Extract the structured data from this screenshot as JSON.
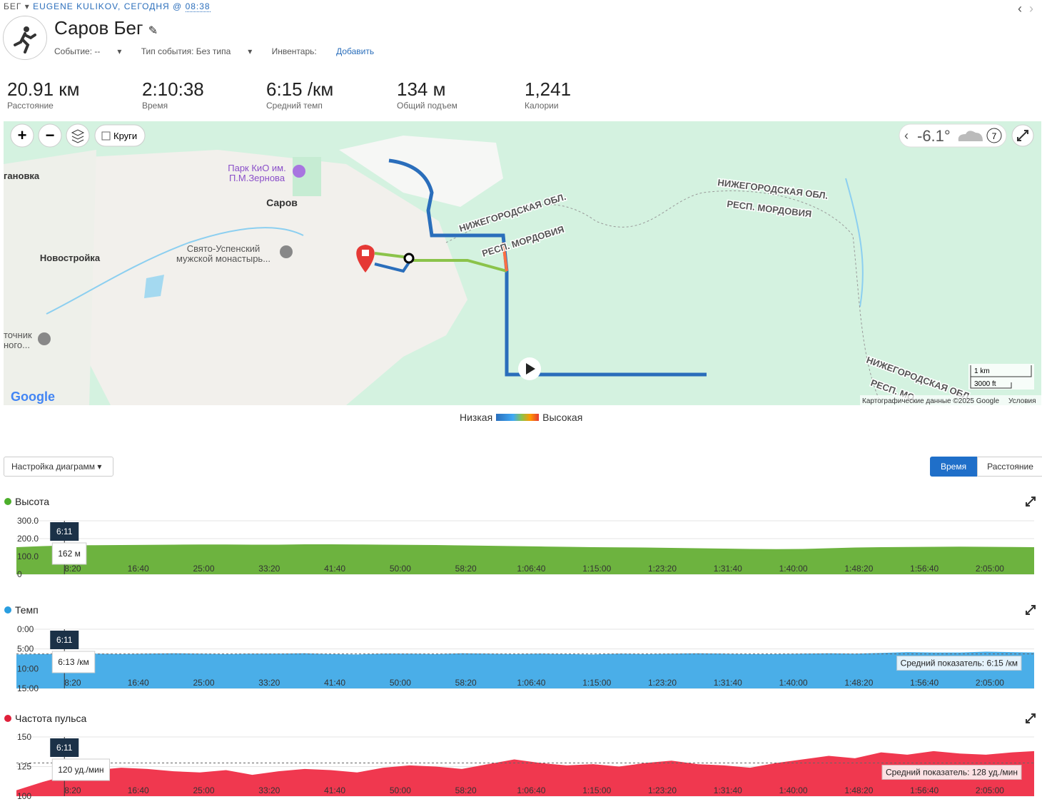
{
  "header": {
    "sport": "БЕГ",
    "owner": "EUGENE KULIKOV, СЕГОДНЯ @",
    "time": "08:38",
    "title": "Саров Бег",
    "fields": [
      {
        "label": "Событие: --"
      },
      {
        "label": "Тип события: Без типа"
      },
      {
        "label": "Инвентарь:",
        "link": "Добавить"
      }
    ]
  },
  "stats": [
    {
      "value": "20.91 км",
      "label": "Расстояние"
    },
    {
      "value": "2:10:38",
      "label": "Время"
    },
    {
      "value": "6:15 /км",
      "label": "Средний темп"
    },
    {
      "value": "134 м",
      "label": "Общий подъем"
    },
    {
      "value": "1,241",
      "label": "Калории"
    }
  ],
  "map": {
    "laps": "Круги",
    "weather": "-6.1°",
    "wind": "7",
    "places": [
      "гановка",
      "Парк КиО им.",
      "П.М.Зернова",
      "Саров",
      "Новостройка",
      "Свято-Успенский",
      "мужской монастырь...",
      "точник",
      "ного..."
    ],
    "borders": [
      "НИЖЕГОРОДСКАЯ ОБЛ.",
      "РЕСП. МОРДОВИЯ",
      "НИЖЕГОРОДСКАЯ ОБЛ.",
      "РЕСП. МОРДОВИЯ",
      "НИЖЕГОРОДСКАЯ ОБЛ.",
      "РЕСП. МО"
    ],
    "scale": [
      "1 km",
      "3000 ft"
    ],
    "logo": "Google",
    "attribution": "Картографические данные ©2025 Google",
    "terms": "Условия",
    "legend_low": "Низкая",
    "legend_high": "Высокая"
  },
  "controls": {
    "settings": "Настройка диаграмм",
    "time": "Время",
    "distance": "Расстояние"
  },
  "charts": [
    {
      "type": "area",
      "title": "Высота",
      "color": "#6db33f",
      "dot": "#4caf2b",
      "inverted": false,
      "x": [
        70,
        270,
        470,
        670,
        870,
        1070,
        1270,
        1470,
        1670,
        1870,
        2070,
        2270,
        2470,
        2670,
        2870,
        3070,
        3270,
        3470,
        3670,
        3870,
        4070,
        4270,
        4470,
        4670,
        4870,
        5070,
        5270,
        5470,
        5670,
        5870,
        6070,
        6270,
        6470,
        6670,
        6870,
        7070,
        7270,
        7470,
        7670,
        7838
      ],
      "values": [
        152,
        158,
        162,
        163,
        164,
        165,
        166,
        167,
        167,
        166,
        166,
        168,
        168,
        167,
        166,
        165,
        164,
        162,
        160,
        158,
        156,
        154,
        152,
        151,
        150,
        148,
        146,
        144,
        142,
        141,
        142,
        146,
        150,
        152,
        153,
        154,
        155,
        154,
        153,
        152
      ],
      "xlim": [
        70,
        7838
      ],
      "xticks": [
        {
          "value": 500,
          "label": "8:20"
        },
        {
          "value": 1000,
          "label": "16:40"
        },
        {
          "value": 1500,
          "label": "25:00"
        },
        {
          "value": 2000,
          "label": "33:20"
        },
        {
          "value": 2500,
          "label": "41:40"
        },
        {
          "value": 3000,
          "label": "50:00"
        },
        {
          "value": 3500,
          "label": "58:20"
        },
        {
          "value": 4000,
          "label": "1:06:40"
        },
        {
          "value": 4500,
          "label": "1:15:00"
        },
        {
          "value": 5000,
          "label": "1:23:20"
        },
        {
          "value": 5500,
          "label": "1:31:40"
        },
        {
          "value": 6000,
          "label": "1:40:00"
        },
        {
          "value": 6500,
          "label": "1:48:20"
        },
        {
          "value": 7000,
          "label": "1:56:40"
        },
        {
          "value": 7500,
          "label": "2:05:00"
        }
      ],
      "ylim": [
        0,
        300
      ],
      "yticks": [
        0,
        {
          "value": 100,
          "label": "100.0"
        },
        {
          "value": 200,
          "label": "200.0"
        },
        {
          "value": 300,
          "label": "300.0"
        }
      ],
      "cursor": {
        "x": 371,
        "label": "6:11",
        "value_label": "162 м"
      }
    },
    {
      "type": "area",
      "title": "Темп",
      "color": "#4aaee8",
      "dot": "#2a9ee0",
      "inverted": true,
      "x": [
        70,
        270,
        470,
        670,
        870,
        1070,
        1270,
        1470,
        1670,
        1870,
        2070,
        2270,
        2470,
        2670,
        2870,
        3070,
        3270,
        3470,
        3670,
        3870,
        4070,
        4270,
        4470,
        4670,
        4870,
        5070,
        5270,
        5470,
        5670,
        5870,
        6070,
        6270,
        6470,
        6670,
        6870,
        7070,
        7270,
        7470,
        7670,
        7838
      ],
      "values": [
        6.4,
        6.3,
        6.2,
        6.2,
        6.3,
        6.2,
        6.1,
        6.2,
        6.3,
        6.2,
        6.2,
        6.1,
        6.3,
        6.4,
        6.2,
        6.2,
        6.3,
        6.1,
        6.2,
        6.3,
        6.2,
        6.3,
        6.4,
        6.2,
        6.3,
        6.2,
        6.1,
        6.2,
        6.3,
        6.3,
        6.2,
        6.1,
        6.2,
        6.0,
        5.8,
        5.9,
        5.9,
        5.7,
        5.8,
        5.9
      ],
      "xlim": [
        70,
        7838
      ],
      "xticks": [
        {
          "value": 500,
          "label": "8:20"
        },
        {
          "value": 1000,
          "label": "16:40"
        },
        {
          "value": 1500,
          "label": "25:00"
        },
        {
          "value": 2000,
          "label": "33:20"
        },
        {
          "value": 2500,
          "label": "41:40"
        },
        {
          "value": 3000,
          "label": "50:00"
        },
        {
          "value": 3500,
          "label": "58:20"
        },
        {
          "value": 4000,
          "label": "1:06:40"
        },
        {
          "value": 4500,
          "label": "1:15:00"
        },
        {
          "value": 5000,
          "label": "1:23:20"
        },
        {
          "value": 5500,
          "label": "1:31:40"
        },
        {
          "value": 6000,
          "label": "1:40:00"
        },
        {
          "value": 6500,
          "label": "1:48:20"
        },
        {
          "value": 7000,
          "label": "1:56:40"
        },
        {
          "value": 7500,
          "label": "2:05:00"
        }
      ],
      "ylim": [
        0,
        15
      ],
      "yticks": [
        {
          "value": 0,
          "label": "0:00"
        },
        {
          "value": 5,
          "label": "5:00"
        },
        {
          "value": 10,
          "label": "10:00"
        },
        {
          "value": 15,
          "label": "15:00"
        }
      ],
      "average": 6.25,
      "average_label": "Средний показатель: 6:15 /км",
      "cursor": {
        "x": 371,
        "label": "6:11",
        "value_label": "6:13 /км"
      }
    },
    {
      "type": "area",
      "title": "Частота пульса",
      "color": "#f0384f",
      "dot": "#e0203a",
      "inverted": false,
      "x": [
        70,
        270,
        470,
        670,
        870,
        1070,
        1270,
        1470,
        1670,
        1870,
        2070,
        2270,
        2470,
        2670,
        2870,
        3070,
        3270,
        3470,
        3670,
        3870,
        4070,
        4270,
        4470,
        4670,
        4870,
        5070,
        5270,
        5470,
        5670,
        5870,
        6070,
        6270,
        6470,
        6670,
        6870,
        7070,
        7270,
        7470,
        7670,
        7838
      ],
      "values": [
        105,
        112,
        118,
        122,
        124,
        123,
        121,
        120,
        122,
        118,
        121,
        123,
        122,
        120,
        124,
        126,
        125,
        123,
        127,
        131,
        128,
        126,
        127,
        125,
        128,
        130,
        127,
        126,
        124,
        128,
        131,
        134,
        132,
        137,
        135,
        138,
        136,
        135,
        137,
        138
      ],
      "xlim": [
        70,
        7838
      ],
      "xticks": [
        {
          "value": 500,
          "label": "8:20"
        },
        {
          "value": 1000,
          "label": "16:40"
        },
        {
          "value": 1500,
          "label": "25:00"
        },
        {
          "value": 2000,
          "label": "33:20"
        },
        {
          "value": 2500,
          "label": "41:40"
        },
        {
          "value": 3000,
          "label": "50:00"
        },
        {
          "value": 3500,
          "label": "58:20"
        },
        {
          "value": 4000,
          "label": "1:06:40"
        },
        {
          "value": 4500,
          "label": "1:15:00"
        },
        {
          "value": 5000,
          "label": "1:23:20"
        },
        {
          "value": 5500,
          "label": "1:31:40"
        },
        {
          "value": 6000,
          "label": "1:40:00"
        },
        {
          "value": 6500,
          "label": "1:48:20"
        },
        {
          "value": 7000,
          "label": "1:56:40"
        },
        {
          "value": 7500,
          "label": "2:05:00"
        }
      ],
      "ylim": [
        100,
        150
      ],
      "yticks": [
        100,
        125,
        150
      ],
      "average": 128,
      "average_label": "Средний показатель: 128 уд./мин",
      "cursor": {
        "x": 371,
        "label": "6:11",
        "value_label": "120 уд./мин"
      }
    }
  ]
}
